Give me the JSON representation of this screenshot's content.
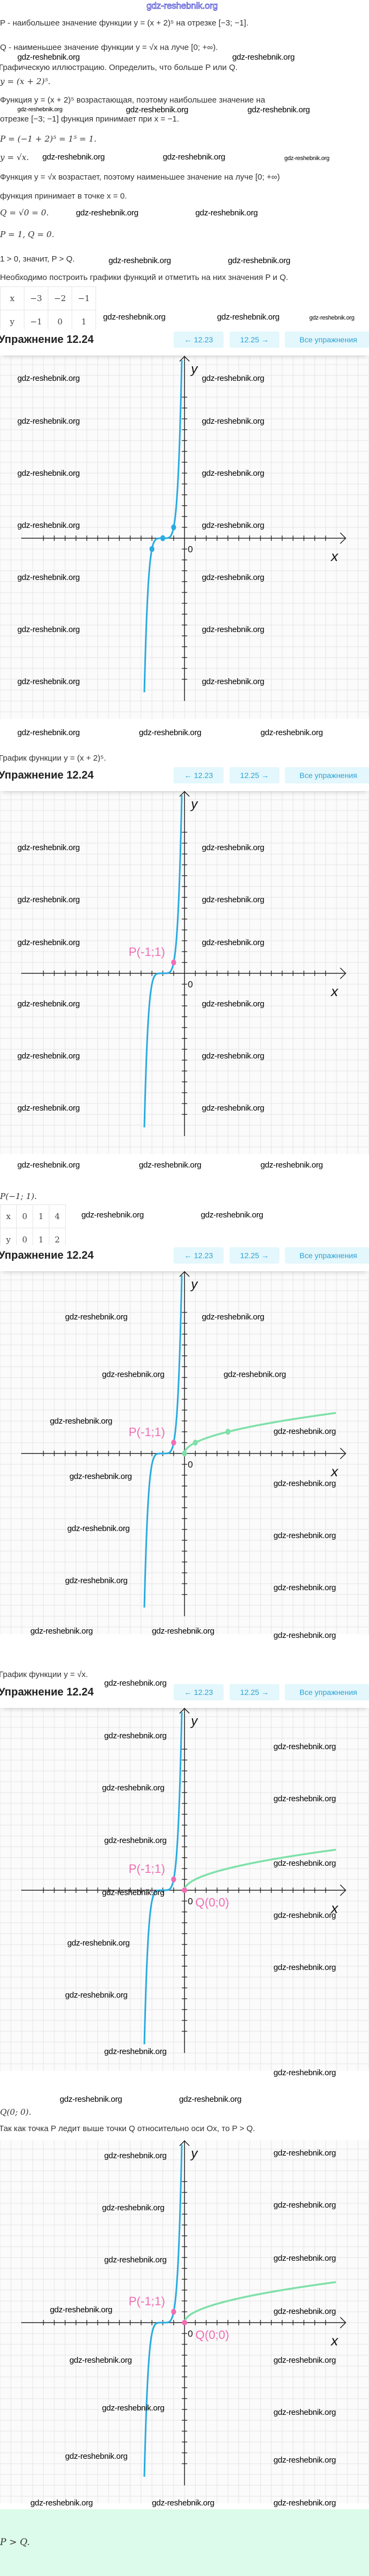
{
  "watermark": "gdz-reshebnik.org",
  "intro": {
    "l1": "P - наибольшее значение функции y = (x + 2)⁵ на отрезке [−3; −1].",
    "l2": "Q - наименьшее значение функции y = √x на луче [0; +∞).",
    "l3": "Графическую иллюстрацию. Определить, что больше P или Q.",
    "l4": "y = (x + 2)⁵.",
    "l5": "Функция y = (x + 2)⁵ возрастающая, поэтому наибольшее значение на",
    "l6": "отрезке [−3; −1] функция принимает при x = −1.",
    "l7": "P = (−1 + 2)⁵ = 1⁵ = 1.",
    "l8": "y = √x.",
    "l9": "Функция y = √x возрастает, поэтому наименьшее значение на луче [0; +∞)",
    "l10": "функция принимает в точке x = 0.",
    "l11": "Q = √0 = 0.",
    "l12": "P = 1,  Q = 0.",
    "l13": "1 > 0, значит, P > Q.",
    "l14": "Необходимо построить графики функций и отметить на них значения P и Q."
  },
  "table1": {
    "x": [
      "x",
      "−3",
      "−2",
      "−1"
    ],
    "y": [
      "y",
      "−1",
      "0",
      "1"
    ]
  },
  "table2": {
    "x": [
      "x",
      "0",
      "1",
      "4"
    ],
    "y": [
      "y",
      "0",
      "1",
      "2"
    ]
  },
  "header": {
    "title": "Упражнение 12.24",
    "prev": "← 12.23",
    "next": "12.25 →",
    "all": "Все упражнения"
  },
  "captions": {
    "c1": "График функции y = (x + 2)⁵.",
    "c2": "P(−1; 1).",
    "c3": "График функции y = √x.",
    "c4": "Q(0; 0).",
    "c5": "Так как точка P ледит выше точки Q относительно оси Ox, то P > Q.",
    "answer": "P > Q."
  },
  "graph": {
    "axis_x": "x",
    "axis_y": "y",
    "origin": "0",
    "label_P": "P(-1;1)",
    "label_Q": "Q(0;0)",
    "colors": {
      "quintic": "#29abe2",
      "sqrt": "#7fe0a9",
      "marker": "#f06eb4"
    },
    "quintic_points": [
      [
        -3,
        -1
      ],
      [
        -2,
        0
      ],
      [
        -1,
        1
      ]
    ],
    "sqrt_points": [
      [
        0,
        0
      ],
      [
        1,
        1
      ],
      [
        4,
        2
      ]
    ],
    "P": [
      -1,
      1
    ],
    "Q": [
      0,
      0
    ]
  }
}
